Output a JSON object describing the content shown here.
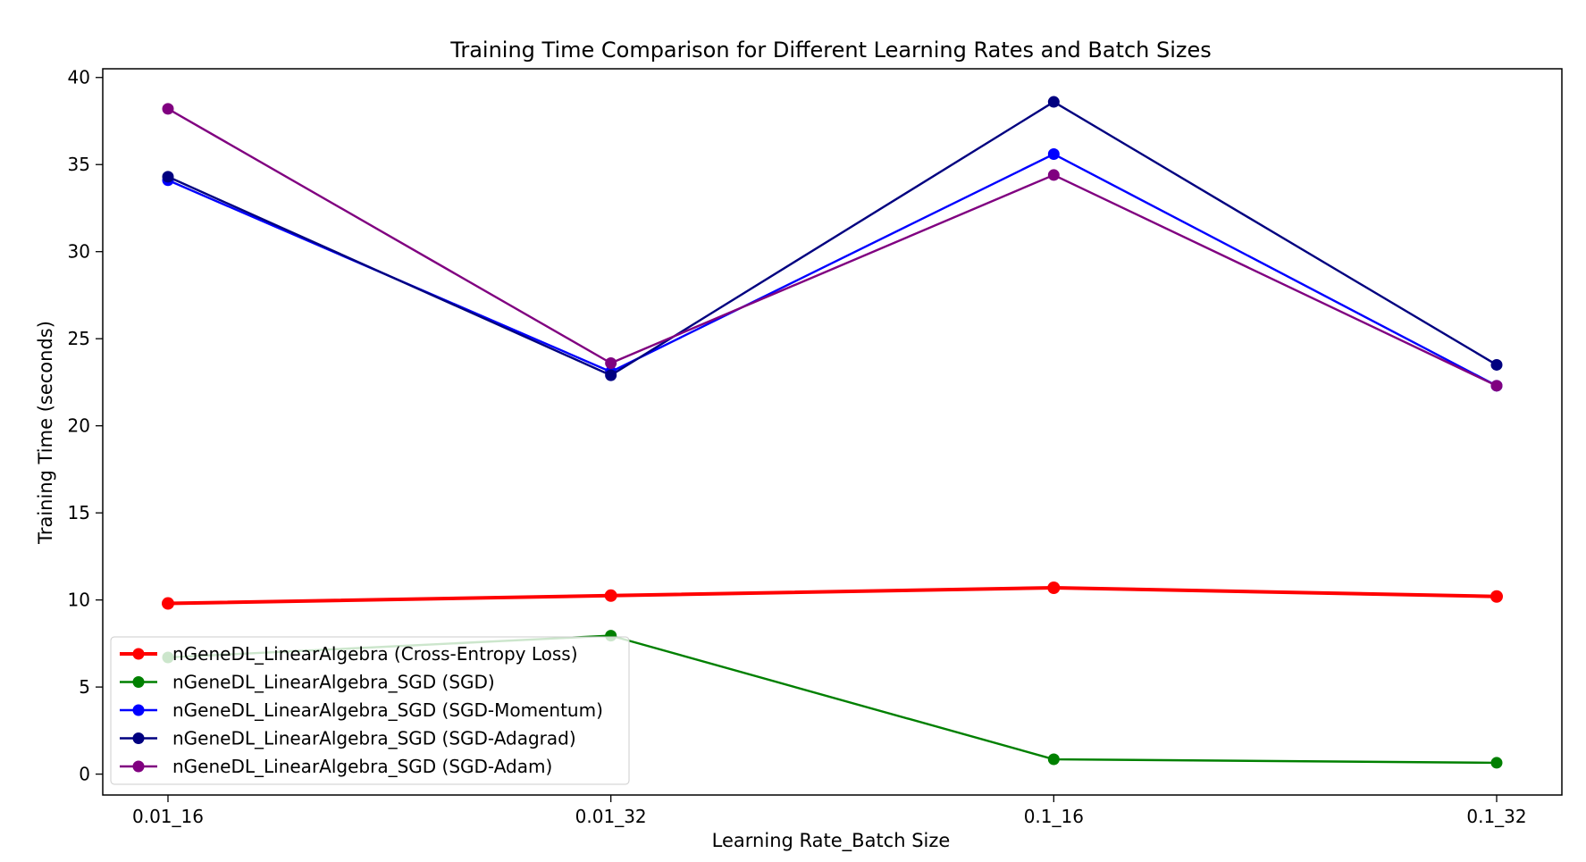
{
  "chart_data": {
    "type": "line",
    "title": "Training Time Comparison for Different Learning Rates and Batch Sizes",
    "xlabel": "Learning Rate_Batch Size",
    "ylabel": "Training Time (seconds)",
    "categories": [
      "0.01_16",
      "0.01_32",
      "0.1_16",
      "0.1_32"
    ],
    "ylim": [
      -1.2,
      40.5
    ],
    "yticks": [
      0,
      5,
      10,
      15,
      20,
      25,
      30,
      35,
      40
    ],
    "grid": false,
    "legend_position": "lower-left",
    "series": [
      {
        "name": "nGeneDL_LinearAlgebra (Cross-Entropy Loss)",
        "color": "#ff0000",
        "width": "thick",
        "values": [
          9.8,
          10.25,
          10.7,
          10.2
        ]
      },
      {
        "name": "nGeneDL_LinearAlgebra_SGD (SGD)",
        "color": "#008000",
        "width": "normal",
        "values": [
          6.7,
          7.95,
          0.85,
          0.65
        ]
      },
      {
        "name": "nGeneDL_LinearAlgebra_SGD (SGD-Momentum)",
        "color": "#0000ff",
        "width": "normal",
        "values": [
          34.1,
          23.1,
          35.6,
          22.3
        ]
      },
      {
        "name": "nGeneDL_LinearAlgebra_SGD (SGD-Adagrad)",
        "color": "#000080",
        "width": "normal",
        "values": [
          34.3,
          22.9,
          38.6,
          23.5
        ]
      },
      {
        "name": "nGeneDL_LinearAlgebra_SGD (SGD-Adam)",
        "color": "#800080",
        "width": "normal",
        "values": [
          38.2,
          23.6,
          34.4,
          22.3
        ]
      }
    ]
  }
}
